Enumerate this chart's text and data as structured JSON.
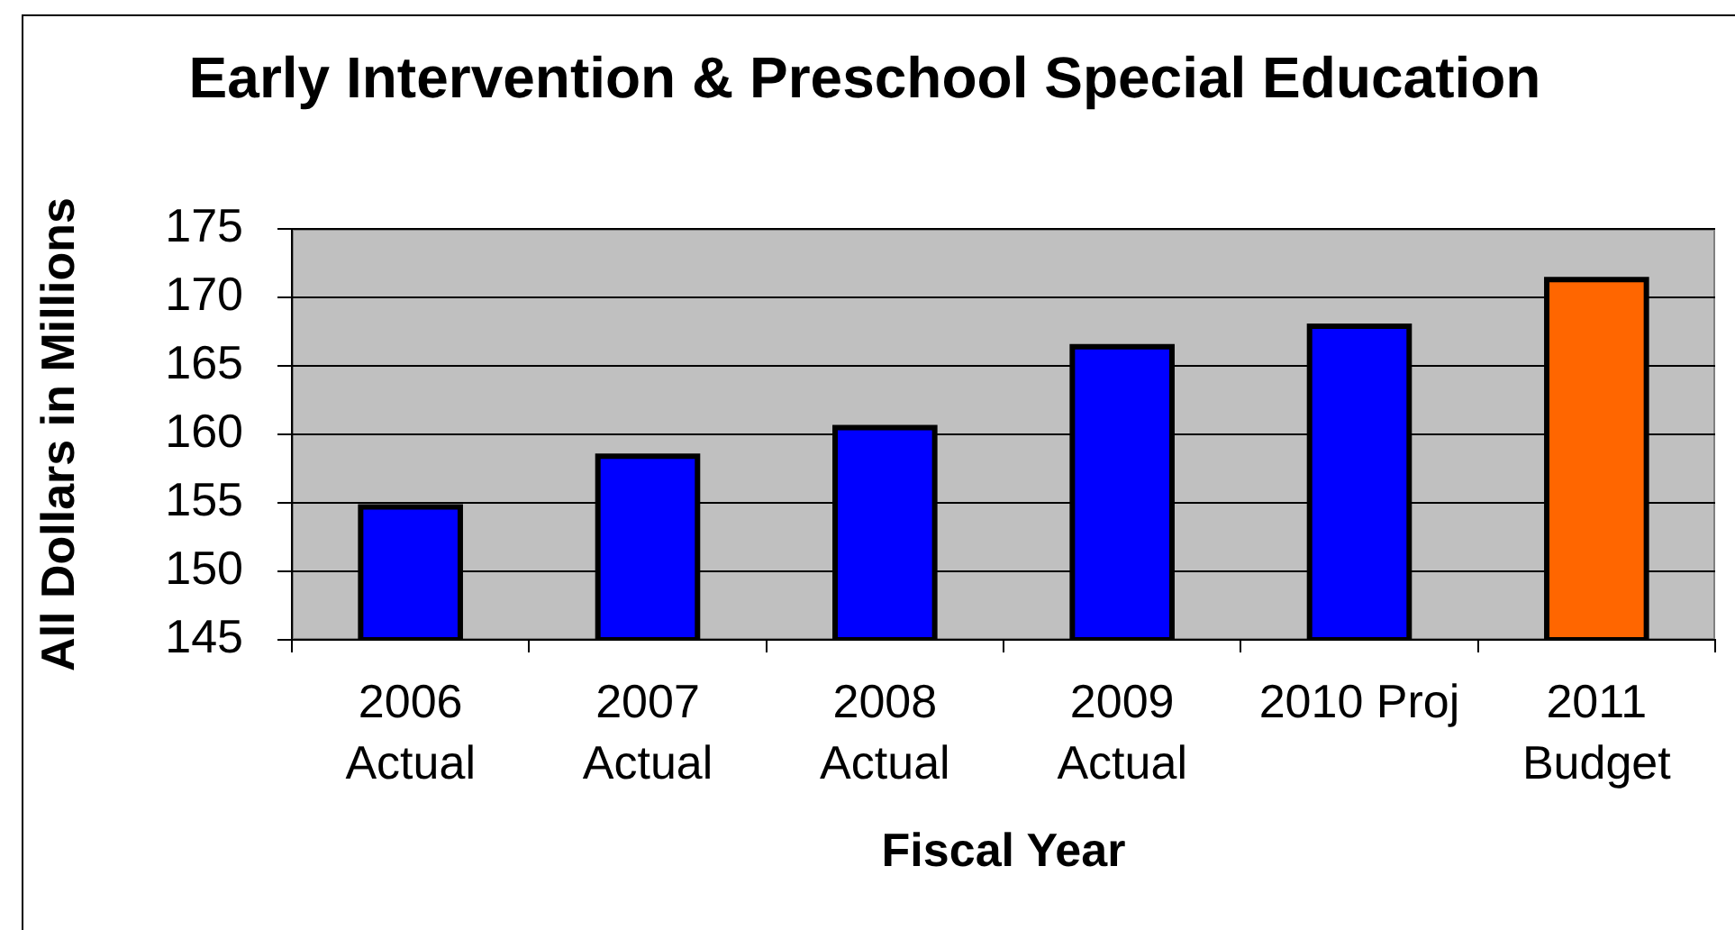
{
  "chart_data": {
    "type": "bar",
    "title": "Early Intervention & Preschool Special Education",
    "xlabel": "Fiscal Year",
    "ylabel": "All Dollars in Millions",
    "categories": [
      "2006 Actual",
      "2007 Actual",
      "2008 Actual",
      "2009 Actual",
      "2010 Proj",
      "2011 Budget"
    ],
    "values": [
      154.7,
      158.4,
      160.5,
      166.4,
      167.9,
      171.3
    ],
    "colors": [
      "#0000ff",
      "#0000ff",
      "#0000ff",
      "#0000ff",
      "#0000ff",
      "#ff6600"
    ],
    "ylim": [
      145,
      175
    ],
    "yticks": [
      145,
      150,
      155,
      160,
      165,
      170,
      175
    ],
    "grid": "y"
  }
}
